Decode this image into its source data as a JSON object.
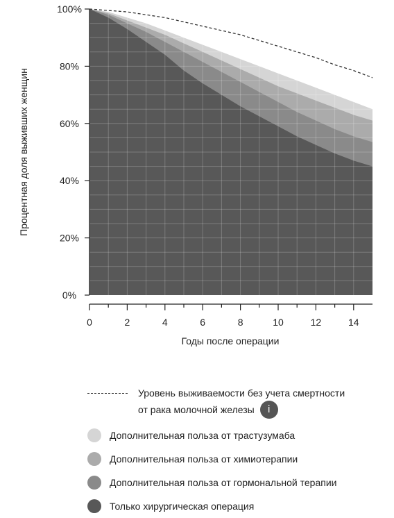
{
  "chart_data": {
    "type": "area",
    "title": "",
    "xlabel": "Годы после операции",
    "ylabel": "Процентная доля выживших женщин",
    "xlim": [
      0,
      15
    ],
    "ylim": [
      0,
      100
    ],
    "x_ticks": [
      "0",
      "2",
      "4",
      "6",
      "8",
      "10",
      "12",
      "14"
    ],
    "y_ticks": [
      "0%",
      "20%",
      "40%",
      "60%",
      "80%",
      "100%"
    ],
    "grid": true,
    "x": [
      0,
      1,
      2,
      3,
      4,
      5,
      6,
      7,
      8,
      9,
      10,
      11,
      12,
      13,
      14,
      15
    ],
    "series": [
      {
        "name": "Только хирургическая операция",
        "color": "#585858",
        "values": [
          100,
          97,
          93,
          88.5,
          84,
          78.5,
          74,
          70,
          66,
          62.5,
          59,
          55.5,
          52.5,
          49.5,
          47,
          45
        ]
      },
      {
        "name": "Дополнительная польза от гормональной терапии",
        "color": "#8a8a8a",
        "values": [
          100,
          98,
          95,
          92,
          88.5,
          85,
          81.5,
          78,
          74.5,
          71,
          67.5,
          64,
          61,
          58,
          55.5,
          53.5
        ]
      },
      {
        "name": "Дополнительная польза от химиотерапии",
        "color": "#ababab",
        "values": [
          100,
          98.5,
          96,
          93.5,
          91,
          88,
          85,
          82,
          79,
          76,
          73,
          70.5,
          68,
          65.5,
          63,
          61
        ]
      },
      {
        "name": "Дополнительная польза от трастузумаба",
        "color": "#d5d5d5",
        "values": [
          100,
          99,
          97,
          95,
          92.5,
          90,
          87.5,
          85,
          82.5,
          80,
          77.5,
          75,
          72.5,
          70,
          67.5,
          65
        ]
      }
    ],
    "reference_line": {
      "name": "Уровень выживаемости без учета смертности от рака молочной железы",
      "style": "dashed",
      "values": [
        100,
        99.5,
        99,
        98,
        97,
        95.5,
        94,
        92.5,
        91,
        89,
        87,
        85,
        83,
        80.5,
        78.5,
        76
      ]
    }
  },
  "legend": {
    "dashed_label_line1": "Уровень выживаемости без учета смертности",
    "dashed_label_line2": "от рака молочной железы",
    "info_icon_glyph": "i",
    "items": [
      {
        "label": "Дополнительная польза от трастузумаба",
        "color": "#d5d5d5"
      },
      {
        "label": "Дополнительная польза от химиотерапии",
        "color": "#ababab"
      },
      {
        "label": "Дополнительная польза от гормональной терапии",
        "color": "#8a8a8a"
      },
      {
        "label": "Только хирургическая операция",
        "color": "#585858"
      }
    ]
  }
}
